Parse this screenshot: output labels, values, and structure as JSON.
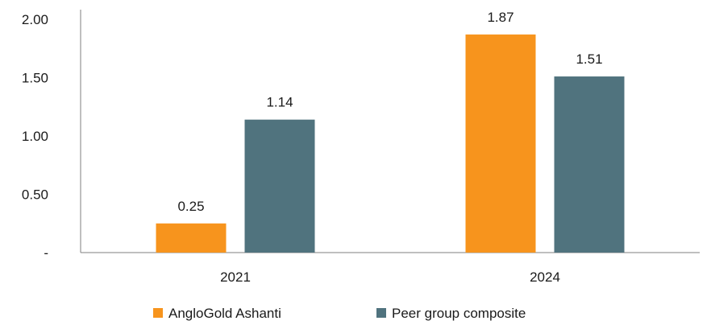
{
  "chart_data": {
    "type": "bar",
    "title": "",
    "xlabel": "",
    "ylabel": "",
    "categories": [
      "2021",
      "2024"
    ],
    "series": [
      {
        "name": "AngloGold Ashanti",
        "color": "#F7941D",
        "values": [
          0.25,
          1.87
        ],
        "labels": [
          "0.25",
          "1.87"
        ]
      },
      {
        "name": "Peer group composite",
        "color": "#50737E",
        "values": [
          1.14,
          1.51
        ],
        "labels": [
          "1.14",
          "1.51"
        ]
      }
    ],
    "ylim": [
      0,
      2.0
    ],
    "yticks": [
      {
        "value": 0,
        "label": "-"
      },
      {
        "value": 0.5,
        "label": "0.50"
      },
      {
        "value": 1.0,
        "label": "1.00"
      },
      {
        "value": 1.5,
        "label": "1.50"
      },
      {
        "value": 2.0,
        "label": "2.00"
      }
    ],
    "grid": false,
    "legend_position": "bottom-center"
  }
}
